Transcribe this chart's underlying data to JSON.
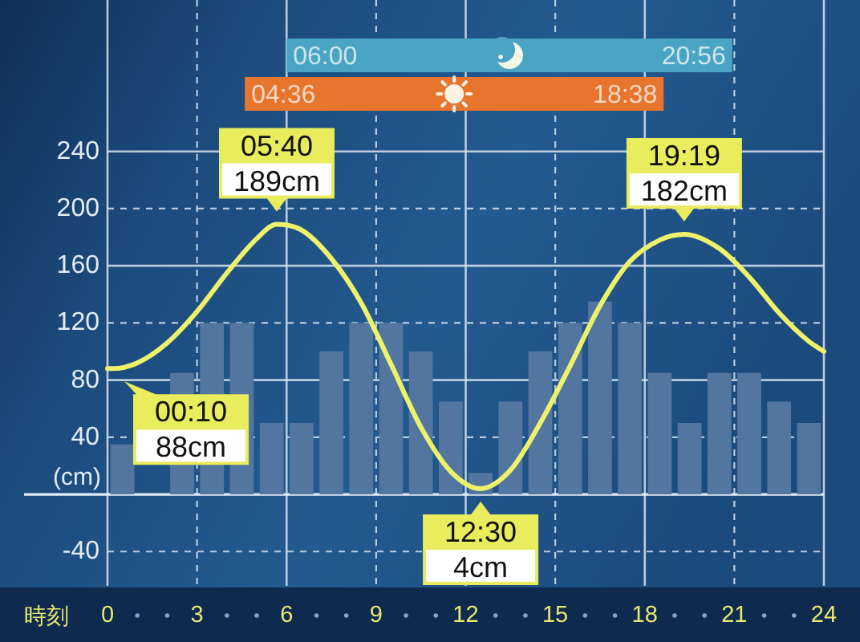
{
  "chart_data": {
    "type": "line",
    "xlabel": "時刻",
    "ylabel": "(cm)",
    "xlim": [
      0,
      24
    ],
    "ylim": [
      -64,
      346
    ],
    "xticks": [
      0,
      3,
      6,
      9,
      12,
      15,
      18,
      21,
      24
    ],
    "yticks": [
      -40,
      40,
      80,
      120,
      160,
      200,
      240
    ],
    "grid": true,
    "series": [
      {
        "type": "bar",
        "color": "#52769f",
        "x": [
          0.5,
          1.5,
          2.5,
          3.5,
          4.5,
          5.5,
          6.5,
          7.5,
          8.5,
          9.5,
          10.5,
          11.5,
          12.5,
          13.5,
          14.5,
          15.5,
          16.5,
          17.5,
          18.5,
          19.5,
          20.5,
          21.5,
          22.5,
          23.5
        ],
        "values": [
          35,
          null,
          85,
          120,
          120,
          50,
          50,
          100,
          120,
          120,
          100,
          65,
          15,
          65,
          100,
          120,
          135,
          120,
          85,
          50,
          85,
          85,
          65,
          50
        ]
      },
      {
        "color": "#eef26b",
        "x": [
          0,
          0.17,
          1,
          2,
          3,
          4,
          5,
          5.67,
          6.5,
          7.5,
          8.5,
          9.5,
          10.5,
          11.5,
          12.5,
          13.5,
          14.5,
          15.5,
          16.5,
          17.5,
          18.5,
          19.32,
          20.5,
          21.5,
          22.5,
          23.5,
          24
        ],
        "values": [
          88,
          88,
          92,
          106,
          128,
          155,
          179,
          189,
          185,
          165,
          134,
          91,
          47,
          16,
          4,
          17,
          50,
          90,
          132,
          163,
          178,
          182,
          172,
          152,
          127,
          107,
          100
        ]
      }
    ],
    "bands": [
      {
        "axis": "x",
        "from": 6.0,
        "to": 20.93,
        "color": "#4aa4c4"
      },
      {
        "axis": "x",
        "from": 4.6,
        "to": 18.63,
        "color": "#e8752d"
      }
    ],
    "annotations": [
      {
        "text": "06:00",
        "x": 6.0
      },
      {
        "text": "20:56",
        "x": 20.93
      },
      {
        "text": "04:36",
        "x": 4.6
      },
      {
        "text": "18:38",
        "x": 18.63
      },
      {
        "text": "05:40\n189cm",
        "x": 5.67,
        "y": 189
      },
      {
        "text": "00:10\n88cm",
        "x": 0.17,
        "y": 88
      },
      {
        "text": "12:30\n4cm",
        "x": 12.5,
        "y": 4
      },
      {
        "text": "19:19\n182cm",
        "x": 19.32,
        "y": 182
      }
    ]
  }
}
